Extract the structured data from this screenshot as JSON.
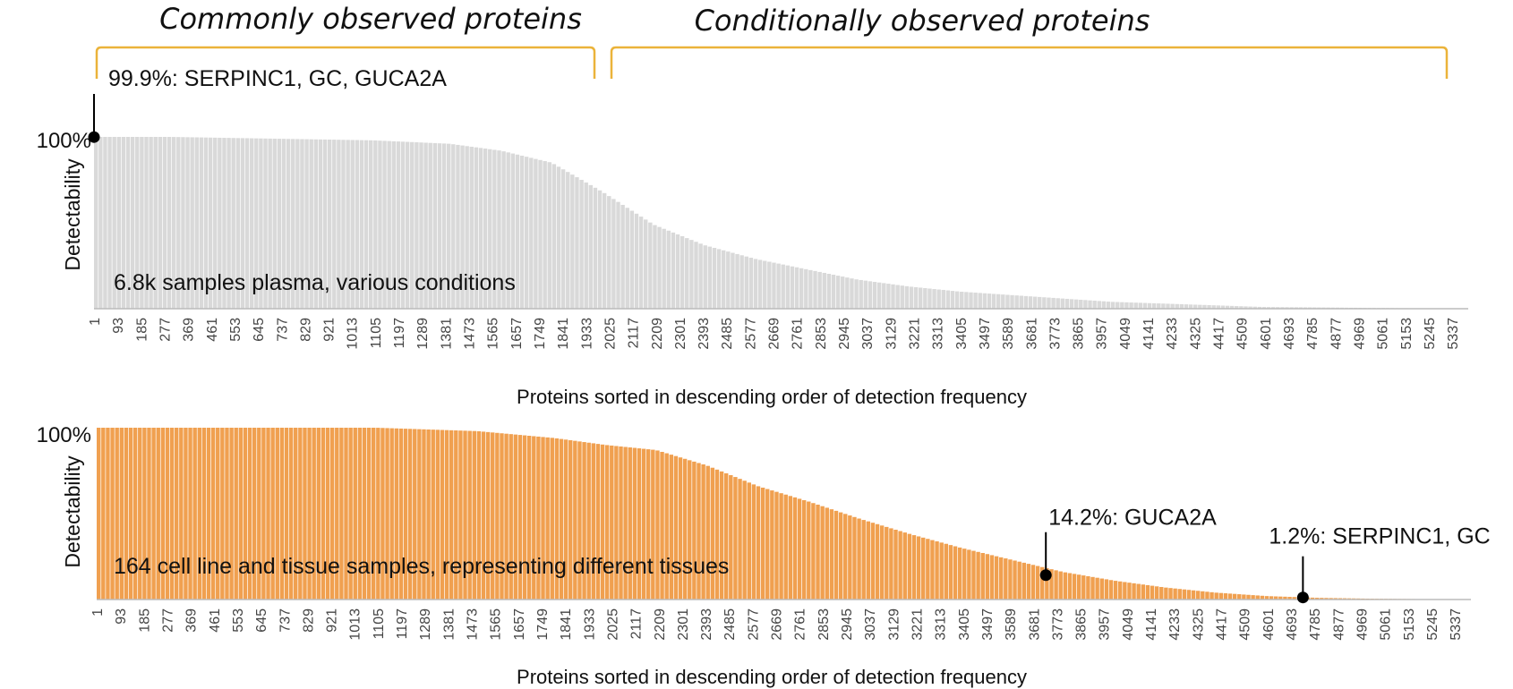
{
  "headers": {
    "common": "Commonly observed proteins",
    "conditional": "Conditionally observed proteins",
    "bracket_color": "#EBB33A"
  },
  "chart_data": [
    {
      "type": "bar",
      "title": "6.8k samples plasma, various conditions",
      "xlabel": "Proteins sorted in descending order of detection frequency",
      "ylabel": "Detectability",
      "ytick_label": "100%",
      "ylim": [
        0,
        100
      ],
      "color": "#D9D9D9",
      "x_range": [
        1,
        5400
      ],
      "tick_labels": [
        "1",
        "93",
        "185",
        "277",
        "369",
        "461",
        "553",
        "645",
        "737",
        "829",
        "921",
        "1013",
        "1105",
        "1197",
        "1289",
        "1381",
        "1473",
        "1565",
        "1657",
        "1749",
        "1841",
        "1933",
        "2025",
        "2117",
        "2209",
        "2301",
        "2393",
        "2485",
        "2577",
        "2669",
        "2761",
        "2853",
        "2945",
        "3037",
        "3129",
        "3221",
        "3313",
        "3405",
        "3497",
        "3589",
        "3681",
        "3773",
        "3865",
        "3957",
        "4049",
        "4141",
        "4233",
        "4325",
        "4417",
        "4509",
        "4601",
        "4693",
        "4785",
        "4877",
        "4969",
        "5061",
        "5153",
        "5245",
        "5337"
      ],
      "curve": [
        [
          1,
          100
        ],
        [
          300,
          100
        ],
        [
          700,
          99
        ],
        [
          1100,
          98
        ],
        [
          1400,
          96
        ],
        [
          1600,
          92
        ],
        [
          1800,
          85
        ],
        [
          2000,
          68
        ],
        [
          2200,
          49
        ],
        [
          2400,
          37
        ],
        [
          2600,
          29
        ],
        [
          2800,
          23
        ],
        [
          3000,
          17
        ],
        [
          3200,
          13
        ],
        [
          3400,
          10
        ],
        [
          3600,
          8
        ],
        [
          3800,
          6
        ],
        [
          4000,
          4
        ],
        [
          4200,
          3
        ],
        [
          4400,
          2
        ],
        [
          4600,
          1
        ],
        [
          5000,
          0.5
        ],
        [
          5400,
          0
        ]
      ],
      "annotations": [
        {
          "x": 1,
          "y": 99.9,
          "label": "99.9%: SERPINC1, GC, GUCA2A"
        }
      ]
    },
    {
      "type": "bar",
      "title": "164 cell line and tissue samples, representing different tissues",
      "xlabel": "Proteins sorted in descending order of detection frequency",
      "ylabel": "Detectability",
      "ytick_label": "100%",
      "ylim": [
        0,
        100
      ],
      "color": "#F0A050",
      "x_range": [
        1,
        5400
      ],
      "tick_labels": [
        "1",
        "93",
        "185",
        "277",
        "369",
        "461",
        "553",
        "645",
        "737",
        "829",
        "921",
        "1013",
        "1105",
        "1197",
        "1289",
        "1381",
        "1473",
        "1565",
        "1657",
        "1749",
        "1841",
        "1933",
        "2025",
        "2117",
        "2209",
        "2301",
        "2393",
        "2485",
        "2577",
        "2669",
        "2761",
        "2853",
        "2945",
        "3037",
        "3129",
        "3221",
        "3313",
        "3405",
        "3497",
        "3589",
        "3681",
        "3773",
        "3865",
        "3957",
        "4049",
        "4141",
        "4233",
        "4325",
        "4417",
        "4509",
        "4601",
        "4693",
        "4785",
        "4877",
        "4969",
        "5061",
        "5153",
        "5245",
        "5337"
      ],
      "curve": [
        [
          1,
          100
        ],
        [
          1100,
          100
        ],
        [
          1500,
          98
        ],
        [
          1800,
          94
        ],
        [
          2000,
          90
        ],
        [
          2200,
          87
        ],
        [
          2400,
          78
        ],
        [
          2600,
          66
        ],
        [
          2800,
          57
        ],
        [
          3000,
          47
        ],
        [
          3200,
          38
        ],
        [
          3400,
          30
        ],
        [
          3600,
          23
        ],
        [
          3800,
          16
        ],
        [
          4000,
          11
        ],
        [
          4200,
          7
        ],
        [
          4400,
          4
        ],
        [
          4600,
          2
        ],
        [
          4800,
          1
        ],
        [
          5000,
          0.5
        ],
        [
          5400,
          0
        ]
      ],
      "annotations": [
        {
          "x": 3730,
          "y": 14.2,
          "label": "14.2%: GUCA2A"
        },
        {
          "x": 4740,
          "y": 1.2,
          "label": "1.2%: SERPINC1, GC"
        }
      ]
    }
  ]
}
